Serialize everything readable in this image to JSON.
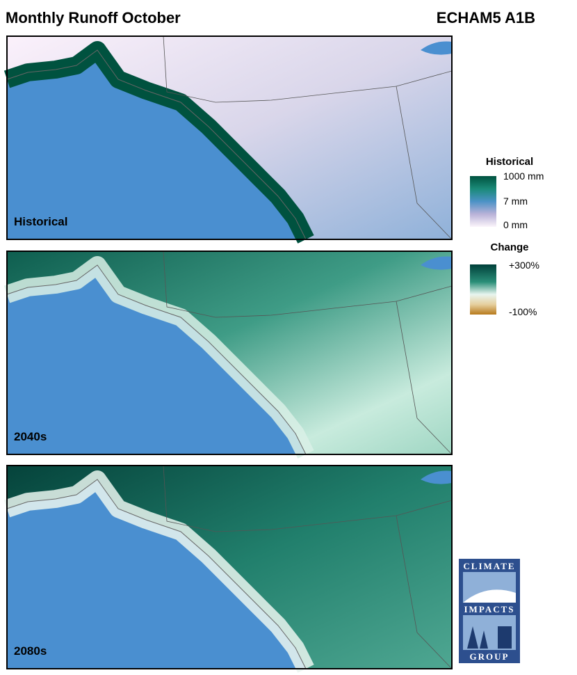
{
  "header": {
    "title": "Monthly Runoff October",
    "model": "ECHAM5 A1B"
  },
  "panels": [
    {
      "label": "Historical"
    },
    {
      "label": "2040s"
    },
    {
      "label": "2080s"
    }
  ],
  "legend": {
    "historical": {
      "title": "Historical",
      "labels": [
        "1000 mm",
        "7 mm",
        "0 mm"
      ]
    },
    "change": {
      "title": "Change",
      "labels": [
        "+300%",
        "-100%"
      ]
    }
  },
  "logo": {
    "top": "CLIMATE",
    "middle": "IMPACTS",
    "bottom": "GROUP"
  }
}
